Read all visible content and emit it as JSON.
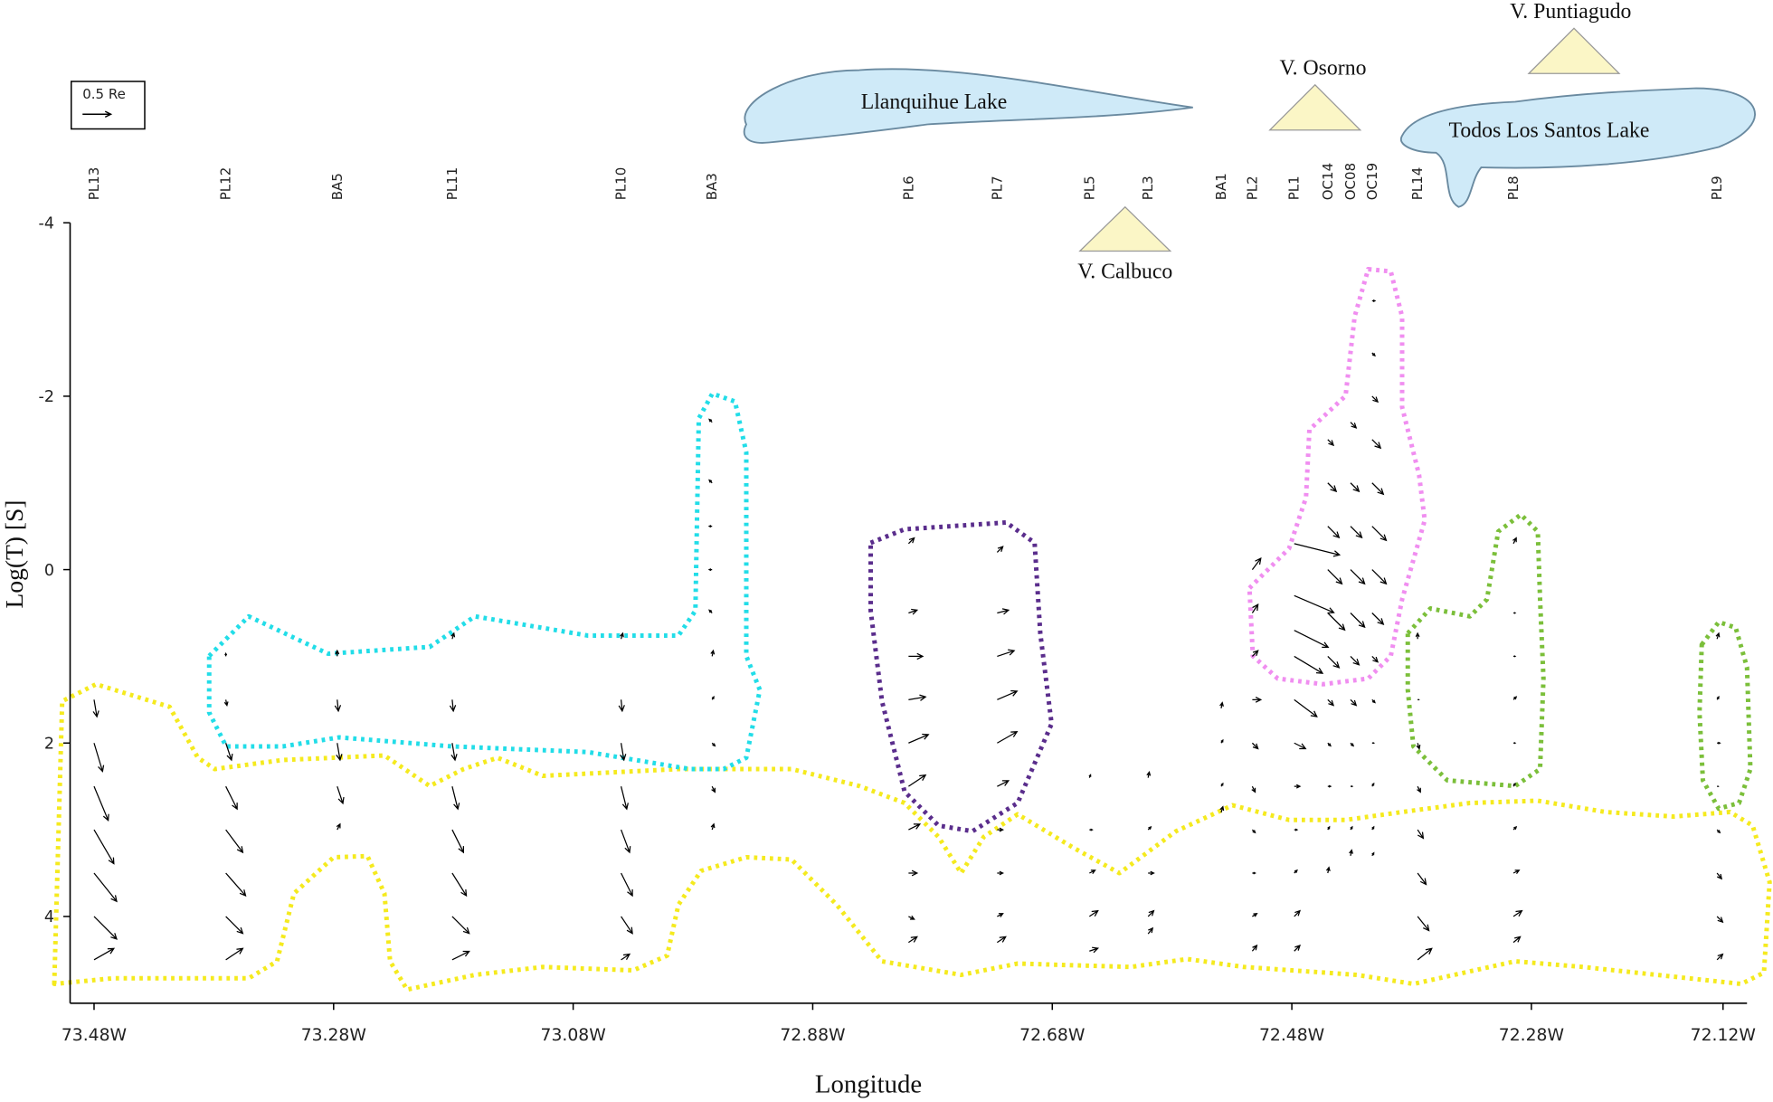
{
  "chart_data": {
    "type": "arrows",
    "x_label": "Longitude",
    "y_label": "Log(T) [S]",
    "xlim": [
      73.5,
      72.1
    ],
    "ylim": [
      -4,
      5
    ],
    "xticks": [
      {
        "value": 73.48,
        "label": "73.48W"
      },
      {
        "value": 73.28,
        "label": "73.28W"
      },
      {
        "value": 73.08,
        "label": "73.08W"
      },
      {
        "value": 72.88,
        "label": "72.88W"
      },
      {
        "value": 72.68,
        "label": "72.68W"
      },
      {
        "value": 72.48,
        "label": "72.48W"
      },
      {
        "value": 72.28,
        "label": "72.28W"
      },
      {
        "value": 72.12,
        "label": "72.12W"
      }
    ],
    "yticks": [
      -4,
      -2,
      0,
      2,
      4
    ],
    "y_inverted": true,
    "arrow_color": "#000000",
    "scale": {
      "label": "0.5 Re",
      "value": 0.5
    },
    "map_labels": [
      "V. Puntiagudo",
      "V. Osorno",
      "Llanquihue Lake",
      "Todos Los Santos Lake",
      "V. Calbuco"
    ],
    "stations": [
      {
        "name": "PL13",
        "lon": 73.48,
        "logT": [
          1.5,
          2,
          2.5,
          3,
          3.5,
          4,
          4.5
        ],
        "u": [
          0.05,
          0.15,
          0.25,
          0.35,
          0.4,
          0.4,
          0.35
        ],
        "v": [
          -0.3,
          -0.5,
          -0.6,
          -0.6,
          -0.5,
          -0.4,
          0.2
        ]
      },
      {
        "name": "PL12",
        "lon": 73.37,
        "logT": [
          1,
          1.5,
          2,
          2.5,
          3,
          3.5,
          4,
          4.5
        ],
        "u": [
          0,
          0.02,
          0.1,
          0.2,
          0.3,
          0.35,
          0.3,
          0.3
        ],
        "v": [
          0.05,
          -0.1,
          -0.3,
          -0.4,
          -0.4,
          -0.4,
          -0.3,
          0.2
        ]
      },
      {
        "name": "BA5",
        "lon": 73.277,
        "logT": [
          1,
          1.5,
          2,
          2.5,
          3
        ],
        "u": [
          0,
          0.02,
          0.05,
          0.1,
          0.05
        ],
        "v": [
          0.1,
          -0.2,
          -0.3,
          -0.3,
          0.1
        ]
      },
      {
        "name": "PL11",
        "lon": 73.181,
        "logT": [
          0.8,
          1.5,
          2,
          2.5,
          3,
          3.5,
          4,
          4.5
        ],
        "u": [
          0.03,
          0.02,
          0.05,
          0.1,
          0.2,
          0.25,
          0.3,
          0.3
        ],
        "v": [
          0.1,
          -0.2,
          -0.3,
          -0.4,
          -0.4,
          -0.4,
          -0.3,
          0.15
        ]
      },
      {
        "name": "PL10",
        "lon": 73.04,
        "logT": [
          0.8,
          1.5,
          2,
          2.5,
          3,
          3.5,
          4,
          4.5
        ],
        "u": [
          0.03,
          0.02,
          0.05,
          0.1,
          0.15,
          0.2,
          0.2,
          0.15
        ],
        "v": [
          0.1,
          -0.2,
          -0.3,
          -0.4,
          -0.4,
          -0.4,
          -0.3,
          0.1
        ]
      },
      {
        "name": "BA3",
        "lon": 72.964,
        "logT": [
          -1.7,
          -1,
          -0.5,
          0,
          0.5,
          1,
          1.5,
          2,
          2.5,
          3
        ],
        "u": [
          -0.05,
          -0.05,
          -0.05,
          -0.05,
          -0.05,
          0.02,
          0.03,
          0.05,
          0.05,
          0.03
        ],
        "v": [
          0.05,
          0.05,
          0,
          0,
          0.05,
          0.1,
          0.05,
          -0.05,
          -0.1,
          0.1
        ]
      },
      {
        "name": "PL6",
        "lon": 72.8,
        "logT": [
          -0.3,
          0.5,
          1,
          1.5,
          2,
          2.5,
          3,
          3.5,
          4,
          4.3
        ],
        "u": [
          0.1,
          0.15,
          0.25,
          0.3,
          0.35,
          0.3,
          0.2,
          0.15,
          0.1,
          0.15
        ],
        "v": [
          0.1,
          0.05,
          0,
          0.05,
          0.15,
          0.2,
          0.1,
          0,
          -0.05,
          0.1
        ]
      },
      {
        "name": "PL7",
        "lon": 72.726,
        "logT": [
          -0.2,
          0.5,
          1,
          1.5,
          2,
          2.5,
          3,
          3.5,
          4,
          4.3
        ],
        "u": [
          0.1,
          0.2,
          0.3,
          0.35,
          0.35,
          0.2,
          0.1,
          0.1,
          0.1,
          0.15
        ],
        "v": [
          0.1,
          0.05,
          0.1,
          0.15,
          0.2,
          0.1,
          0,
          0,
          0.05,
          0.1
        ]
      },
      {
        "name": "PL5",
        "lon": 72.649,
        "logT": [
          2.4,
          3,
          3.5,
          4,
          4.4
        ],
        "u": [
          0.02,
          0.05,
          0.1,
          0.15,
          0.15
        ],
        "v": [
          0.05,
          0,
          0.05,
          0.1,
          0.05
        ]
      },
      {
        "name": "PL3",
        "lon": 72.6,
        "logT": [
          2.4,
          3,
          3.5,
          4,
          4.2
        ],
        "u": [
          0.02,
          0.05,
          0.1,
          0.1,
          0.08
        ],
        "v": [
          0.1,
          0.05,
          0,
          0.1,
          0.1
        ]
      },
      {
        "name": "BA1",
        "lon": 72.539,
        "logT": [
          1.6,
          2,
          2.5,
          2.8
        ],
        "u": [
          0.02,
          0.03,
          0.03,
          0.03
        ],
        "v": [
          0.1,
          0.05,
          0.05,
          0.1
        ]
      },
      {
        "name": "PL2",
        "lon": 72.513,
        "logT": [
          0,
          0.5,
          1,
          1.5,
          2,
          2.5,
          3,
          3.5,
          4,
          4.4
        ],
        "u": [
          0.15,
          0.1,
          0.1,
          0.15,
          0.1,
          0.05,
          0.05,
          0.05,
          0.08,
          0.08
        ],
        "v": [
          0.2,
          0.15,
          0.1,
          0,
          -0.1,
          -0.1,
          -0.05,
          0,
          0.05,
          0.1
        ]
      },
      {
        "name": "PL1",
        "lon": 72.478,
        "logT": [
          -0.3,
          0.3,
          0.7,
          1,
          1.5,
          2,
          2.5,
          3,
          3.5,
          4,
          4.4
        ],
        "u": [
          0.8,
          0.7,
          0.6,
          0.5,
          0.4,
          0.2,
          0.1,
          0.05,
          0.05,
          0.1,
          0.1
        ],
        "v": [
          -0.2,
          -0.3,
          -0.3,
          -0.3,
          -0.3,
          -0.1,
          0,
          0,
          0.05,
          0.1,
          0.1
        ]
      },
      {
        "name": "OC14",
        "lon": 72.45,
        "logT": [
          -1.5,
          -1,
          -0.5,
          0,
          0.5,
          1,
          1.5,
          2,
          2.5,
          3,
          3.5
        ],
        "u": [
          0.1,
          0.15,
          0.2,
          0.25,
          0.3,
          0.2,
          0.1,
          0.05,
          0.05,
          0.03,
          0.02
        ],
        "v": [
          -0.1,
          -0.15,
          -0.2,
          -0.25,
          -0.3,
          -0.2,
          -0.1,
          -0.05,
          0,
          0.05,
          0.1
        ]
      },
      {
        "name": "OC08",
        "lon": 72.431,
        "logT": [
          -1.7,
          -1,
          -0.5,
          0,
          0.5,
          1,
          1.5,
          2,
          2.5,
          3,
          3.3
        ],
        "u": [
          0.1,
          0.15,
          0.2,
          0.25,
          0.25,
          0.15,
          0.1,
          0.05,
          0.03,
          0.03,
          0.02
        ],
        "v": [
          -0.1,
          -0.15,
          -0.2,
          -0.25,
          -0.25,
          -0.15,
          -0.1,
          -0.05,
          0,
          0.05,
          0.1
        ]
      },
      {
        "name": "OC19",
        "lon": 72.413,
        "logT": [
          -3.1,
          -2.5,
          -2,
          -1.5,
          -1,
          -0.5,
          0,
          0.5,
          1,
          1.5,
          2,
          2.5,
          3,
          3.3
        ],
        "u": [
          0.05,
          0.05,
          0.1,
          0.15,
          0.2,
          0.25,
          0.25,
          0.2,
          0.1,
          0.05,
          0.03,
          0.03,
          0.03,
          0.03
        ],
        "v": [
          0,
          -0.05,
          -0.1,
          -0.15,
          -0.2,
          -0.25,
          -0.25,
          -0.2,
          -0.1,
          -0.05,
          0,
          0.05,
          0.05,
          0.05
        ]
      },
      {
        "name": "PL14",
        "lon": 72.375,
        "logT": [
          0.8,
          1.5,
          2,
          2.5,
          3,
          3.5,
          4,
          4.5
        ],
        "u": [
          0,
          0.02,
          0.03,
          0.05,
          0.1,
          0.15,
          0.2,
          0.25
        ],
        "v": [
          0.1,
          0,
          -0.1,
          -0.1,
          -0.15,
          -0.2,
          -0.25,
          0.2
        ]
      },
      {
        "name": "PL8",
        "lon": 72.295,
        "logT": [
          -0.3,
          0.5,
          1,
          1.5,
          2,
          2.5,
          3,
          3.5,
          4,
          4.3
        ],
        "u": [
          0.05,
          0.03,
          0.03,
          0.05,
          0.03,
          0.03,
          0.05,
          0.1,
          0.15,
          0.12
        ],
        "v": [
          0.1,
          0,
          0,
          0.05,
          0,
          0.05,
          0.05,
          0.05,
          0.1,
          0.1
        ]
      },
      {
        "name": "PL9",
        "lon": 72.125,
        "logT": [
          0.8,
          1.5,
          2,
          2.5,
          3,
          3.5,
          4,
          4.5
        ],
        "u": [
          0.03,
          0.03,
          0.05,
          0.02,
          0.05,
          0.08,
          0.1,
          0.1
        ],
        "v": [
          0.1,
          0.05,
          0,
          0,
          -0.05,
          -0.1,
          -0.1,
          0.1
        ]
      }
    ]
  }
}
